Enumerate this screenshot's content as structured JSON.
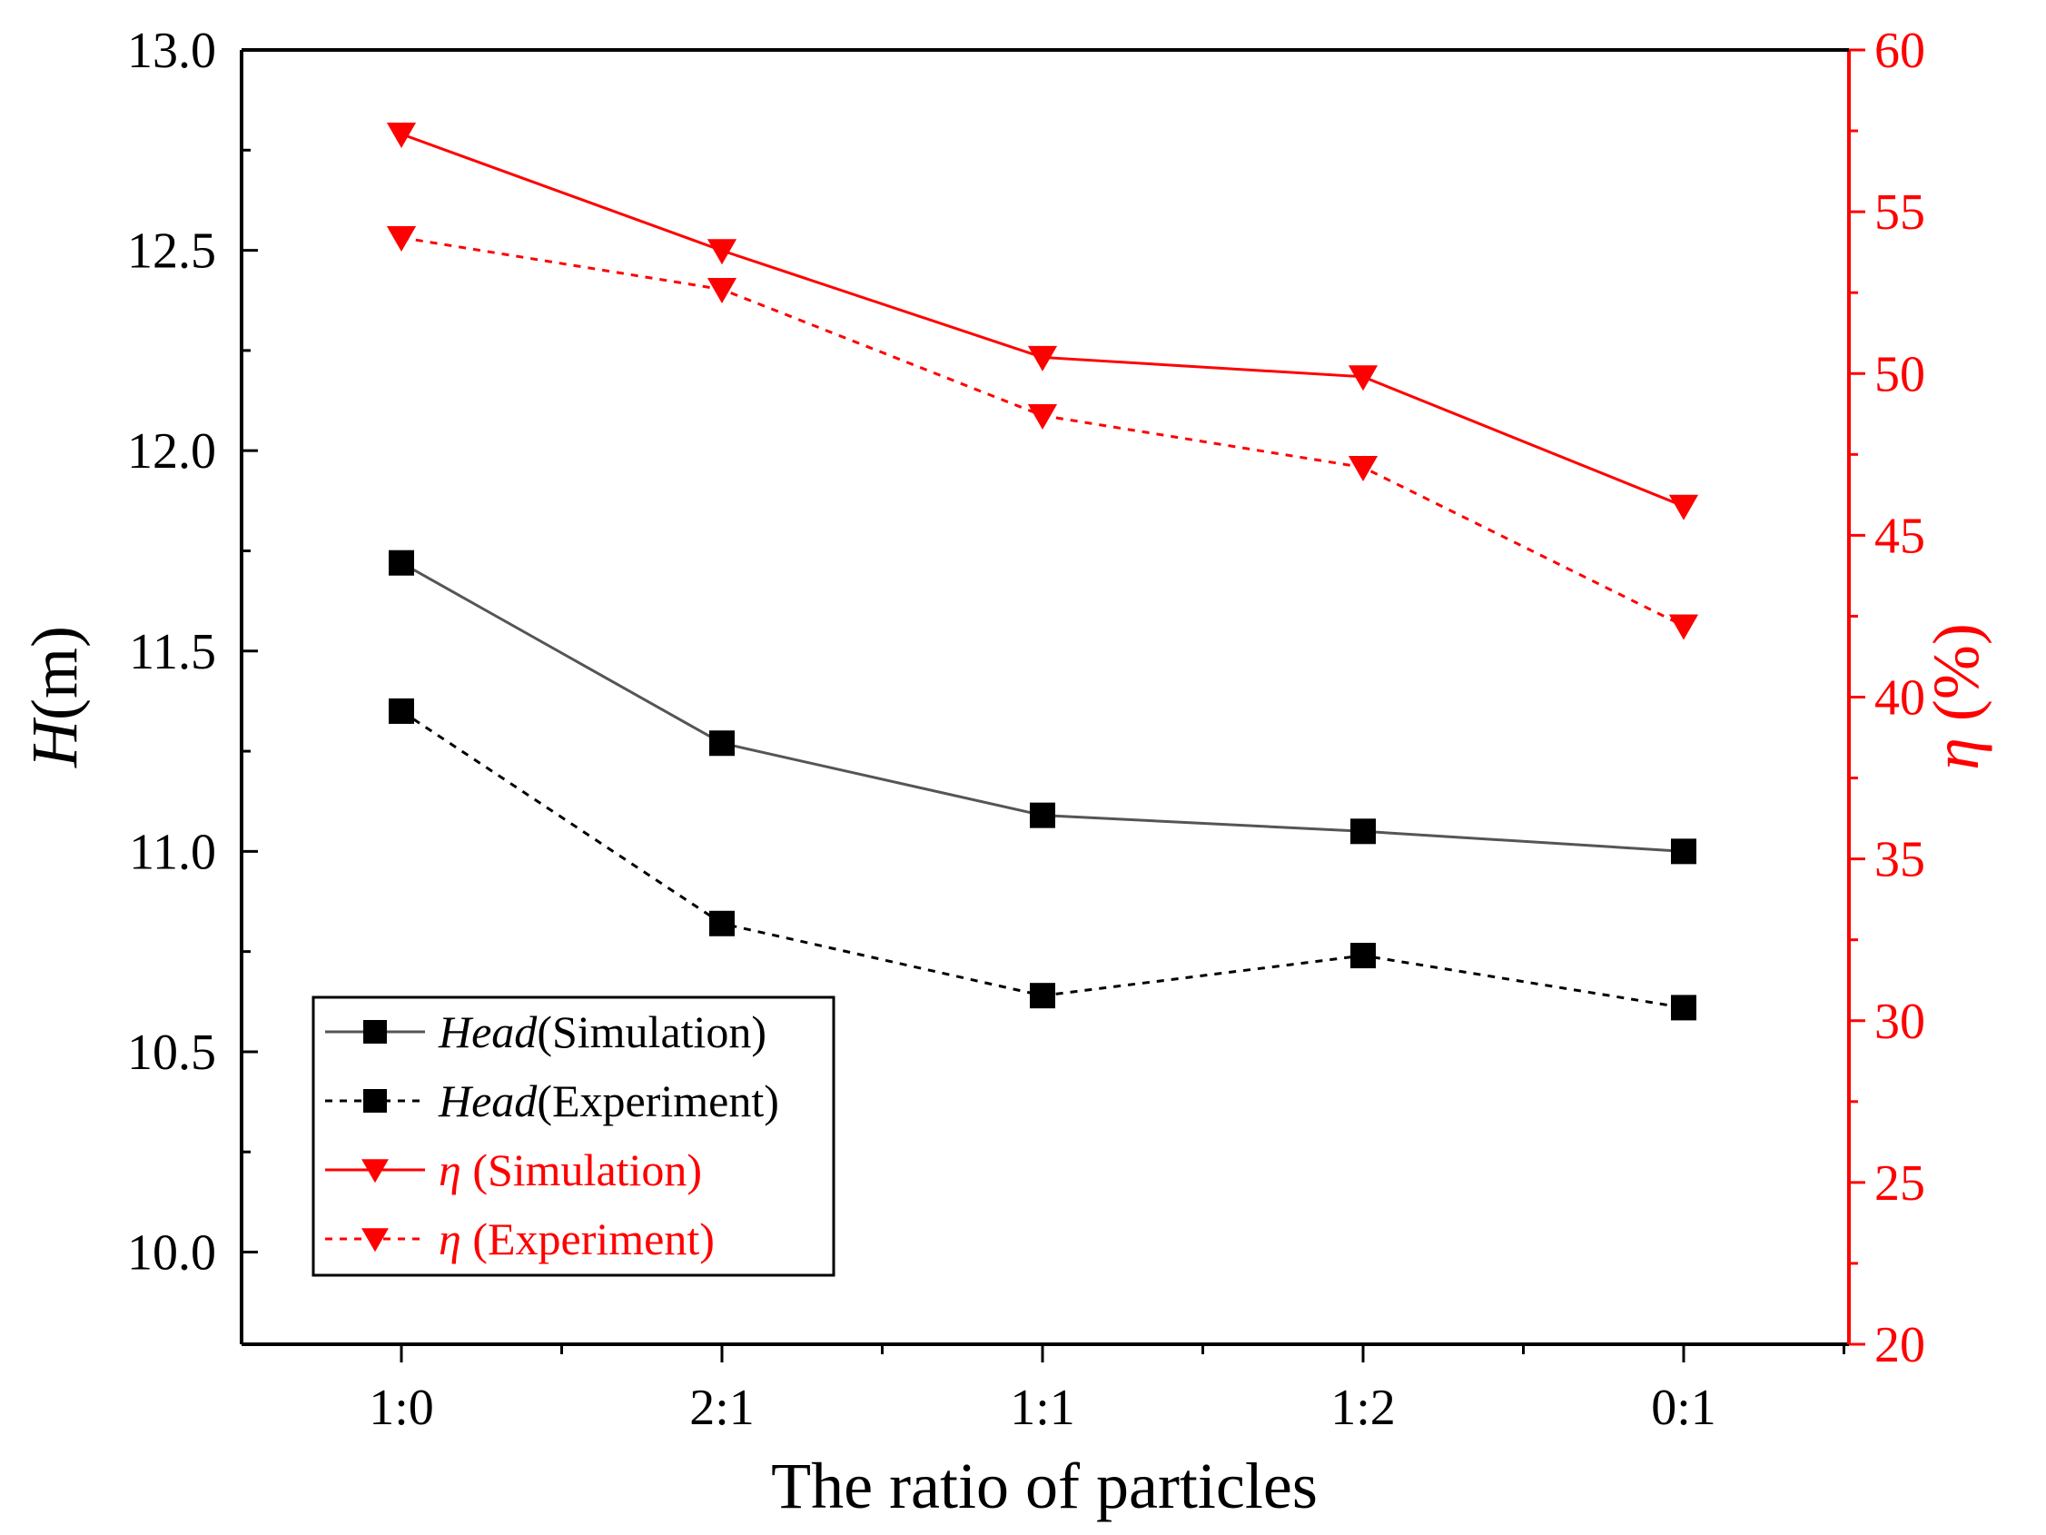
{
  "chart_data": {
    "type": "line",
    "title": "",
    "xlabel": "The ratio of particles",
    "ylabel_left": {
      "italic": "H",
      "rest": "(m)"
    },
    "ylabel_right": {
      "italic": "η",
      "rest": " (%)"
    },
    "categories": [
      "1:0",
      "2:1",
      "1:1",
      "1:2",
      "0:1"
    ],
    "y_left_lim": [
      9.77,
      13.0
    ],
    "y_left_ticks": [
      "10.0",
      "10.5",
      "11.0",
      "11.5",
      "12.0",
      "12.5",
      "13.0"
    ],
    "y_right_lim": [
      20,
      60
    ],
    "y_right_ticks": [
      "20",
      "25",
      "30",
      "35",
      "40",
      "45",
      "50",
      "55",
      "60"
    ],
    "grid": false,
    "legend_position": "bottom-left",
    "series": [
      {
        "name": "Head(Simulation)",
        "label_italic": "Head",
        "label_rest": "(Simulation)",
        "axis": "left",
        "color": "#555555",
        "marker": "square",
        "dash": "solid",
        "values": [
          11.72,
          11.27,
          11.09,
          11.05,
          11.0
        ]
      },
      {
        "name": "Head(Experiment)",
        "label_italic": "Head",
        "label_rest": "(Experiment)",
        "axis": "left",
        "color": "#000000",
        "marker": "square",
        "dash": "dotted",
        "values": [
          11.35,
          10.82,
          10.64,
          10.74,
          10.61
        ]
      },
      {
        "name": "η (Simulation)",
        "label_italic": "η",
        "label_rest": " (Simulation)",
        "axis": "right",
        "color": "#ff0000",
        "marker": "triangle-down",
        "dash": "solid",
        "values": [
          57.4,
          53.8,
          50.5,
          49.9,
          45.9
        ]
      },
      {
        "name": "η (Experiment)",
        "label_italic": "η",
        "label_rest": " (Experiment)",
        "axis": "right",
        "color": "#ff0000",
        "marker": "triangle-down",
        "dash": "dotted",
        "values": [
          54.2,
          52.6,
          48.7,
          47.1,
          42.2
        ]
      }
    ]
  }
}
